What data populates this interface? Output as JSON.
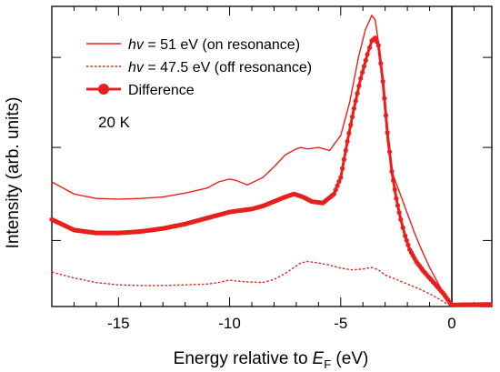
{
  "chart_data": {
    "type": "line",
    "xlabel": "Energy relative to",
    "xlabel_symbol": "E",
    "xlabel_subscript": "F",
    "xlabel_unit": " (eV)",
    "ylabel": "Intensity (arb. units)",
    "xlim": [
      -18,
      1.8
    ],
    "ylim": [
      0,
      10
    ],
    "xticks": [
      -15,
      -10,
      -5,
      0
    ],
    "xtick_labels": [
      "-15",
      "-10",
      "-5",
      "0"
    ],
    "minor_xtick_step": 1,
    "yticks": [
      2.2,
      5.3,
      8.3
    ],
    "grid": false,
    "legend_position": "top-left",
    "annotation": "20 K",
    "fermi_line_x": 0,
    "accent_color": "#e8201c",
    "series": [
      {
        "name_symbol": "hv",
        "name_rest": " = 51 eV (on resonance)",
        "style": "solid",
        "x": [
          -18,
          -17,
          -16,
          -15,
          -14,
          -13,
          -12,
          -11,
          -10.5,
          -10,
          -9.7,
          -9.2,
          -8.5,
          -8,
          -7.5,
          -7,
          -6.8,
          -6.5,
          -6,
          -5.5,
          -5,
          -4.6,
          -4.2,
          -3.9,
          -3.6,
          -3.45,
          -3.3,
          -3.1,
          -2.9,
          -2.7,
          -2.5,
          -2.3,
          -2,
          -1.7,
          -1.4,
          -1,
          -0.6,
          -0.3,
          0,
          0.5,
          1,
          1.5,
          1.8
        ],
        "y": [
          4.15,
          3.75,
          3.6,
          3.58,
          3.6,
          3.65,
          3.78,
          3.95,
          4.15,
          4.25,
          4.2,
          4.05,
          4.3,
          4.65,
          5.05,
          5.25,
          5.3,
          5.25,
          5.3,
          5.2,
          5.7,
          6.8,
          8.3,
          9.2,
          9.7,
          9.55,
          8.8,
          7.5,
          5.5,
          4.5,
          4.1,
          3.7,
          3.1,
          2.5,
          1.95,
          1.3,
          0.75,
          0.35,
          0.02,
          0.04,
          0.05,
          0.06,
          0.07
        ]
      },
      {
        "name_symbol": "hv",
        "name_rest": " = 47.5 eV (off resonance)",
        "style": "dotted",
        "x": [
          -18,
          -17,
          -16,
          -15,
          -14,
          -13,
          -12,
          -11,
          -10.5,
          -10,
          -9.7,
          -9.2,
          -8.5,
          -8,
          -7.5,
          -7,
          -6.8,
          -6.5,
          -6,
          -5.5,
          -5,
          -4.5,
          -4,
          -3.6,
          -3.3,
          -3,
          -2.5,
          -2,
          -1.5,
          -1,
          -0.5,
          -0.2,
          0,
          0.5,
          1,
          1.5,
          1.8
        ],
        "y": [
          1.15,
          0.95,
          0.8,
          0.72,
          0.7,
          0.7,
          0.72,
          0.75,
          0.8,
          0.88,
          0.85,
          0.82,
          0.8,
          0.9,
          1.1,
          1.35,
          1.45,
          1.5,
          1.45,
          1.38,
          1.28,
          1.22,
          1.25,
          1.3,
          1.22,
          1.05,
          0.9,
          0.75,
          0.6,
          0.42,
          0.22,
          0.08,
          0.02,
          0.04,
          0.05,
          0.06,
          0.07
        ]
      },
      {
        "name": "Difference",
        "style": "markers",
        "x": [
          -18,
          -17,
          -16,
          -15,
          -14,
          -13,
          -12,
          -11,
          -10.5,
          -10,
          -9.5,
          -9,
          -8.5,
          -8,
          -7.5,
          -7.1,
          -6.7,
          -6.3,
          -5.8,
          -5.3,
          -5,
          -4.7,
          -4.4,
          -4.1,
          -3.8,
          -3.6,
          -3.45,
          -3.3,
          -3.1,
          -2.9,
          -2.7,
          -2.5,
          -2.3,
          -2.1,
          -1.9,
          -1.6,
          -1.3,
          -1,
          -0.7,
          -0.4,
          -0.1,
          0,
          0.5,
          1,
          1.5,
          1.8
        ],
        "y": [
          2.9,
          2.55,
          2.45,
          2.45,
          2.5,
          2.6,
          2.75,
          2.95,
          3.05,
          3.15,
          3.2,
          3.25,
          3.35,
          3.5,
          3.65,
          3.75,
          3.65,
          3.5,
          3.45,
          3.75,
          4.3,
          5.5,
          6.6,
          7.6,
          8.4,
          8.85,
          8.95,
          8.7,
          7.5,
          5.8,
          4.5,
          3.6,
          2.9,
          2.35,
          1.9,
          1.5,
          1.2,
          0.95,
          0.7,
          0.45,
          0.15,
          0.05,
          0.06,
          0.06,
          0.07,
          0.07
        ]
      }
    ]
  }
}
